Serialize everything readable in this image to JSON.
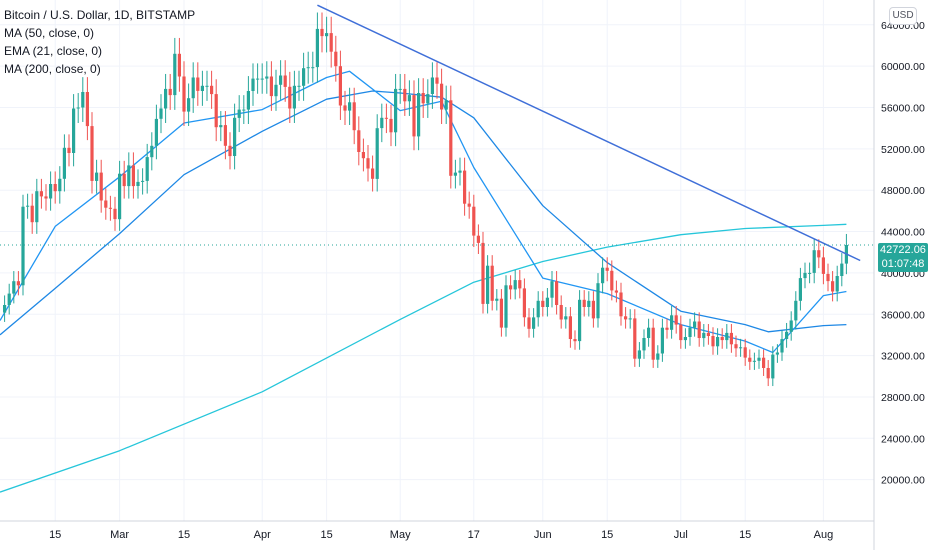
{
  "legend": {
    "title": "Bitcoin / U.S. Dollar, 1D, BITSTAMP",
    "ma50": "MA (50, close, 0)",
    "ema21": "EMA (21, close, 0)",
    "ma200": "MA (200, close, 0)"
  },
  "unit": "USD",
  "current_price": {
    "value": "42722.06",
    "countdown": "01:07:48",
    "color": "#26a69a"
  },
  "colors": {
    "up": "#26a69a",
    "down": "#ef5350",
    "ema21": "#2196f3",
    "ma50": "#1e88e5",
    "ma200": "#26c6da",
    "trendline": "#3f6fd8",
    "grid": "#f0f3fa",
    "axis_text": "#131722"
  },
  "chart_data": {
    "type": "candlestick",
    "y_axis": {
      "ticks": [
        "64000.00",
        "60000.00",
        "56000.00",
        "52000.00",
        "48000.00",
        "44000.00",
        "40000.00",
        "36000.00",
        "32000.00",
        "28000.00",
        "24000.00",
        "20000.00"
      ],
      "tick_values": [
        64000,
        60000,
        56000,
        52000,
        48000,
        44000,
        40000,
        36000,
        32000,
        28000,
        24000,
        20000
      ],
      "range": [
        16000,
        66400
      ]
    },
    "x_axis": {
      "labels": [
        "15",
        "Mar",
        "15",
        "Apr",
        "15",
        "May",
        "17",
        "Jun",
        "15",
        "Jul",
        "15",
        "Aug"
      ],
      "dates": [
        "2021-02-15",
        "2021-03-01",
        "2021-03-15",
        "2021-04-01",
        "2021-04-15",
        "2021-05-01",
        "2021-05-17",
        "2021-06-01",
        "2021-06-15",
        "2021-07-01",
        "2021-07-15",
        "2021-08-01"
      ],
      "range": [
        "2021-02-03",
        "2021-08-12"
      ]
    },
    "grid": true,
    "candles_close": [
      [
        "2021-02-04",
        36900
      ],
      [
        "2021-02-05",
        38000
      ],
      [
        "2021-02-06",
        39200
      ],
      [
        "2021-02-07",
        38800
      ],
      [
        "2021-02-08",
        46400
      ],
      [
        "2021-02-09",
        46500
      ],
      [
        "2021-02-10",
        44900
      ],
      [
        "2021-02-11",
        47900
      ],
      [
        "2021-02-12",
        47400
      ],
      [
        "2021-02-13",
        47200
      ],
      [
        "2021-02-14",
        48600
      ],
      [
        "2021-02-15",
        47900
      ],
      [
        "2021-02-16",
        49100
      ],
      [
        "2021-02-17",
        52100
      ],
      [
        "2021-02-18",
        51600
      ],
      [
        "2021-02-19",
        55900
      ],
      [
        "2021-02-20",
        56000
      ],
      [
        "2021-02-21",
        57500
      ],
      [
        "2021-02-22",
        54200
      ],
      [
        "2021-02-23",
        48900
      ],
      [
        "2021-02-24",
        49700
      ],
      [
        "2021-02-25",
        47000
      ],
      [
        "2021-02-26",
        46300
      ],
      [
        "2021-02-27",
        46200
      ],
      [
        "2021-02-28",
        45200
      ],
      [
        "2021-03-01",
        49600
      ],
      [
        "2021-03-02",
        48400
      ],
      [
        "2021-03-03",
        50400
      ],
      [
        "2021-03-04",
        48400
      ],
      [
        "2021-03-05",
        48800
      ],
      [
        "2021-03-06",
        48900
      ],
      [
        "2021-03-07",
        51200
      ],
      [
        "2021-03-08",
        52300
      ],
      [
        "2021-03-09",
        54900
      ],
      [
        "2021-03-10",
        55900
      ],
      [
        "2021-03-11",
        57800
      ],
      [
        "2021-03-12",
        57200
      ],
      [
        "2021-03-13",
        61200
      ],
      [
        "2021-03-14",
        59000
      ],
      [
        "2021-03-15",
        55600
      ],
      [
        "2021-03-16",
        56900
      ],
      [
        "2021-03-17",
        58900
      ],
      [
        "2021-03-18",
        57600
      ],
      [
        "2021-03-19",
        58100
      ],
      [
        "2021-03-20",
        58100
      ],
      [
        "2021-03-21",
        57300
      ],
      [
        "2021-03-22",
        54100
      ],
      [
        "2021-03-23",
        54300
      ],
      [
        "2021-03-24",
        52300
      ],
      [
        "2021-03-25",
        51300
      ],
      [
        "2021-03-26",
        55000
      ],
      [
        "2021-03-27",
        55800
      ],
      [
        "2021-03-28",
        55800
      ],
      [
        "2021-03-29",
        57600
      ],
      [
        "2021-03-30",
        58800
      ],
      [
        "2021-03-31",
        58800
      ],
      [
        "2021-04-01",
        58800
      ],
      [
        "2021-04-02",
        59000
      ],
      [
        "2021-04-03",
        57100
      ],
      [
        "2021-04-04",
        58200
      ],
      [
        "2021-04-05",
        59100
      ],
      [
        "2021-04-06",
        58000
      ],
      [
        "2021-04-07",
        55900
      ],
      [
        "2021-04-08",
        58100
      ],
      [
        "2021-04-09",
        58100
      ],
      [
        "2021-04-10",
        59800
      ],
      [
        "2021-04-11",
        59900
      ],
      [
        "2021-04-12",
        59900
      ],
      [
        "2021-04-13",
        63600
      ],
      [
        "2021-04-14",
        62900
      ],
      [
        "2021-04-15",
        63200
      ],
      [
        "2021-04-16",
        61400
      ],
      [
        "2021-04-17",
        60000
      ],
      [
        "2021-04-18",
        56200
      ],
      [
        "2021-04-19",
        55700
      ],
      [
        "2021-04-20",
        56500
      ],
      [
        "2021-04-21",
        53800
      ],
      [
        "2021-04-22",
        51700
      ],
      [
        "2021-04-23",
        51100
      ],
      [
        "2021-04-24",
        50100
      ],
      [
        "2021-04-25",
        49100
      ],
      [
        "2021-04-26",
        54000
      ],
      [
        "2021-04-27",
        55000
      ],
      [
        "2021-04-28",
        54900
      ],
      [
        "2021-04-29",
        53600
      ],
      [
        "2021-04-30",
        57800
      ],
      [
        "2021-05-01",
        57800
      ],
      [
        "2021-05-02",
        56600
      ],
      [
        "2021-05-03",
        57200
      ],
      [
        "2021-05-04",
        53200
      ],
      [
        "2021-05-05",
        57400
      ],
      [
        "2021-05-06",
        56400
      ],
      [
        "2021-05-07",
        57300
      ],
      [
        "2021-05-08",
        58900
      ],
      [
        "2021-05-09",
        58300
      ],
      [
        "2021-05-10",
        55800
      ],
      [
        "2021-05-11",
        56700
      ],
      [
        "2021-05-12",
        49400
      ],
      [
        "2021-05-13",
        49700
      ],
      [
        "2021-05-14",
        49900
      ],
      [
        "2021-05-15",
        46700
      ],
      [
        "2021-05-16",
        46400
      ],
      [
        "2021-05-17",
        43600
      ],
      [
        "2021-05-18",
        42900
      ],
      [
        "2021-05-19",
        37000
      ],
      [
        "2021-05-20",
        40700
      ],
      [
        "2021-05-21",
        37300
      ],
      [
        "2021-05-22",
        37500
      ],
      [
        "2021-05-23",
        34700
      ],
      [
        "2021-05-24",
        38800
      ],
      [
        "2021-05-25",
        38400
      ],
      [
        "2021-05-26",
        39300
      ],
      [
        "2021-05-27",
        38500
      ],
      [
        "2021-05-28",
        35700
      ],
      [
        "2021-05-29",
        34600
      ],
      [
        "2021-05-30",
        35700
      ],
      [
        "2021-05-31",
        37300
      ],
      [
        "2021-06-01",
        36700
      ],
      [
        "2021-06-02",
        37600
      ],
      [
        "2021-06-03",
        39200
      ],
      [
        "2021-06-04",
        36900
      ],
      [
        "2021-06-05",
        35500
      ],
      [
        "2021-06-06",
        35800
      ],
      [
        "2021-06-07",
        33600
      ],
      [
        "2021-06-08",
        33400
      ],
      [
        "2021-06-09",
        37400
      ],
      [
        "2021-06-10",
        36700
      ],
      [
        "2021-06-11",
        37300
      ],
      [
        "2021-06-12",
        35600
      ],
      [
        "2021-06-13",
        39000
      ],
      [
        "2021-06-14",
        40500
      ],
      [
        "2021-06-15",
        40200
      ],
      [
        "2021-06-16",
        38300
      ],
      [
        "2021-06-17",
        38100
      ],
      [
        "2021-06-18",
        35800
      ],
      [
        "2021-06-19",
        35500
      ],
      [
        "2021-06-20",
        35600
      ],
      [
        "2021-06-21",
        31700
      ],
      [
        "2021-06-22",
        32500
      ],
      [
        "2021-06-23",
        33700
      ],
      [
        "2021-06-24",
        34700
      ],
      [
        "2021-06-25",
        31600
      ],
      [
        "2021-06-26",
        32200
      ],
      [
        "2021-06-27",
        34700
      ],
      [
        "2021-06-28",
        34500
      ],
      [
        "2021-06-29",
        35900
      ],
      [
        "2021-06-30",
        35000
      ],
      [
        "2021-07-01",
        33500
      ],
      [
        "2021-07-02",
        33800
      ],
      [
        "2021-07-03",
        34700
      ],
      [
        "2021-07-04",
        35300
      ],
      [
        "2021-07-05",
        33700
      ],
      [
        "2021-07-06",
        34200
      ],
      [
        "2021-07-07",
        33900
      ],
      [
        "2021-07-08",
        32900
      ],
      [
        "2021-07-09",
        33800
      ],
      [
        "2021-07-10",
        33500
      ],
      [
        "2021-07-11",
        34200
      ],
      [
        "2021-07-12",
        33100
      ],
      [
        "2021-07-13",
        32700
      ],
      [
        "2021-07-14",
        32800
      ],
      [
        "2021-07-15",
        31800
      ],
      [
        "2021-07-16",
        31400
      ],
      [
        "2021-07-17",
        31500
      ],
      [
        "2021-07-18",
        31800
      ],
      [
        "2021-07-19",
        30800
      ],
      [
        "2021-07-20",
        29800
      ],
      [
        "2021-07-21",
        32100
      ],
      [
        "2021-07-22",
        32300
      ],
      [
        "2021-07-23",
        33600
      ],
      [
        "2021-07-24",
        34300
      ],
      [
        "2021-07-25",
        35400
      ],
      [
        "2021-07-26",
        37300
      ],
      [
        "2021-07-27",
        39500
      ],
      [
        "2021-07-28",
        40000
      ],
      [
        "2021-07-29",
        40000
      ],
      [
        "2021-07-30",
        42200
      ],
      [
        "2021-07-31",
        41500
      ],
      [
        "2021-08-01",
        39900
      ],
      [
        "2021-08-02",
        39200
      ],
      [
        "2021-08-03",
        38200
      ],
      [
        "2021-08-04",
        39700
      ],
      [
        "2021-08-05",
        40900
      ],
      [
        "2021-08-06",
        42700
      ]
    ],
    "ma200_line": [
      [
        "2021-02-03",
        18800
      ],
      [
        "2021-03-01",
        22800
      ],
      [
        "2021-04-01",
        28500
      ],
      [
        "2021-05-01",
        35500
      ],
      [
        "2021-05-17",
        39100
      ],
      [
        "2021-06-01",
        41100
      ],
      [
        "2021-06-15",
        42500
      ],
      [
        "2021-07-01",
        43700
      ],
      [
        "2021-07-15",
        44300
      ],
      [
        "2021-08-01",
        44600
      ],
      [
        "2021-08-06",
        44700
      ]
    ],
    "ma50_line": [
      [
        "2021-02-03",
        34000
      ],
      [
        "2021-02-15",
        38500
      ],
      [
        "2021-03-01",
        43800
      ],
      [
        "2021-03-15",
        49500
      ],
      [
        "2021-04-01",
        53700
      ],
      [
        "2021-04-15",
        56800
      ],
      [
        "2021-04-25",
        57600
      ],
      [
        "2021-05-01",
        57400
      ],
      [
        "2021-05-10",
        57000
      ],
      [
        "2021-05-17",
        55000
      ],
      [
        "2021-06-01",
        46500
      ],
      [
        "2021-06-15",
        41000
      ],
      [
        "2021-07-01",
        36300
      ],
      [
        "2021-07-15",
        35000
      ],
      [
        "2021-07-20",
        34300
      ],
      [
        "2021-08-01",
        34900
      ],
      [
        "2021-08-06",
        35000
      ]
    ],
    "ema21_line": [
      [
        "2021-02-03",
        35400
      ],
      [
        "2021-02-15",
        44500
      ],
      [
        "2021-03-01",
        49300
      ],
      [
        "2021-03-15",
        54500
      ],
      [
        "2021-04-01",
        55800
      ],
      [
        "2021-04-15",
        58900
      ],
      [
        "2021-04-20",
        59500
      ],
      [
        "2021-05-01",
        55700
      ],
      [
        "2021-05-10",
        56600
      ],
      [
        "2021-05-17",
        50200
      ],
      [
        "2021-06-01",
        39500
      ],
      [
        "2021-06-15",
        38000
      ],
      [
        "2021-07-01",
        35000
      ],
      [
        "2021-07-15",
        33400
      ],
      [
        "2021-07-21",
        32300
      ],
      [
        "2021-08-01",
        37800
      ],
      [
        "2021-08-06",
        38200
      ]
    ],
    "trendline": [
      [
        "2021-04-13",
        65900
      ],
      [
        "2021-08-09",
        41200
      ]
    ]
  }
}
